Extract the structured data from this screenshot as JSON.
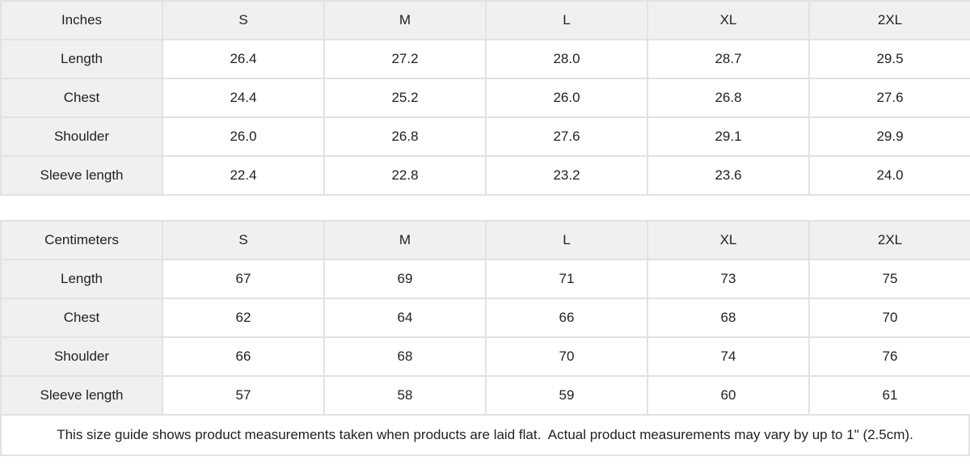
{
  "colors": {
    "header_bg": "#f0f0f0",
    "cell_bg": "#ffffff",
    "border": "#e2e2e2",
    "text": "#222222"
  },
  "tables": [
    {
      "unit_label": "Inches",
      "columns": [
        "S",
        "M",
        "L",
        "XL",
        "2XL"
      ],
      "rows": [
        {
          "label": "Length",
          "values": [
            "26.4",
            "27.2",
            "28.0",
            "28.7",
            "29.5"
          ]
        },
        {
          "label": "Chest",
          "values": [
            "24.4",
            "25.2",
            "26.0",
            "26.8",
            "27.6"
          ]
        },
        {
          "label": "Shoulder",
          "values": [
            "26.0",
            "26.8",
            "27.6",
            "29.1",
            "29.9"
          ]
        },
        {
          "label": "Sleeve length",
          "values": [
            "22.4",
            "22.8",
            "23.2",
            "23.6",
            "24.0"
          ]
        }
      ]
    },
    {
      "unit_label": "Centimeters",
      "columns": [
        "S",
        "M",
        "L",
        "XL",
        "2XL"
      ],
      "rows": [
        {
          "label": "Length",
          "values": [
            "67",
            "69",
            "71",
            "73",
            "75"
          ]
        },
        {
          "label": "Chest",
          "values": [
            "62",
            "64",
            "66",
            "68",
            "70"
          ]
        },
        {
          "label": "Shoulder",
          "values": [
            "66",
            "68",
            "70",
            "74",
            "76"
          ]
        },
        {
          "label": "Sleeve length",
          "values": [
            "57",
            "58",
            "59",
            "60",
            "61"
          ]
        }
      ]
    }
  ],
  "footer": {
    "note": "This size guide shows product measurements taken when products are laid flat.  Actual product measurements may vary by up to 1\" (2.5cm)."
  }
}
